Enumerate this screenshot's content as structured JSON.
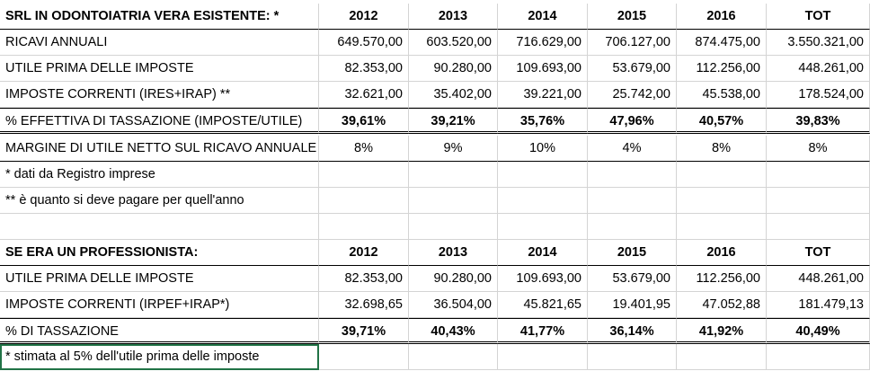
{
  "table1": {
    "header": [
      "SRL IN ODONTOIATRIA VERA ESISTENTE: *",
      "2012",
      "2013",
      "2014",
      "2015",
      "2016",
      "TOT"
    ],
    "rows": [
      [
        "RICAVI ANNUALI",
        "649.570,00",
        "603.520,00",
        "716.629,00",
        "706.127,00",
        "874.475,00",
        "3.550.321,00"
      ],
      [
        "UTILE PRIMA DELLE IMPOSTE",
        "82.353,00",
        "90.280,00",
        "109.693,00",
        "53.679,00",
        "112.256,00",
        "448.261,00"
      ],
      [
        "IMPOSTE CORRENTI (IRES+IRAP) **",
        "32.621,00",
        "35.402,00",
        "39.221,00",
        "25.742,00",
        "45.538,00",
        "178.524,00"
      ]
    ],
    "percent_row": [
      "% EFFETTIVA DI TASSAZIONE (IMPOSTE/UTILE)",
      "39,61%",
      "39,21%",
      "35,76%",
      "47,96%",
      "40,57%",
      "39,83%"
    ],
    "margin_row": [
      "MARGINE DI UTILE NETTO SUL RICAVO ANNUALE",
      "8%",
      "9%",
      "10%",
      "4%",
      "8%",
      "8%"
    ],
    "notes": [
      "* dati da Registro imprese",
      "** è quanto si deve pagare per quell'anno"
    ]
  },
  "table2": {
    "header": [
      "SE ERA UN PROFESSIONISTA:",
      "2012",
      "2013",
      "2014",
      "2015",
      "2016",
      "TOT"
    ],
    "rows": [
      [
        "UTILE PRIMA DELLE IMPOSTE",
        "82.353,00",
        "90.280,00",
        "109.693,00",
        "53.679,00",
        "112.256,00",
        "448.261,00"
      ],
      [
        "IMPOSTE CORRENTI (IRPEF+IRAP*)",
        "32.698,65",
        "36.504,00",
        "45.821,65",
        "19.401,95",
        "47.052,88",
        "181.479,13"
      ]
    ],
    "percent_row": [
      "% DI TASSAZIONE",
      "39,71%",
      "40,43%",
      "41,77%",
      "36,14%",
      "41,92%",
      "40,49%"
    ],
    "notes": [
      "* stimata al 5% dell'utile prima delle imposte"
    ]
  }
}
